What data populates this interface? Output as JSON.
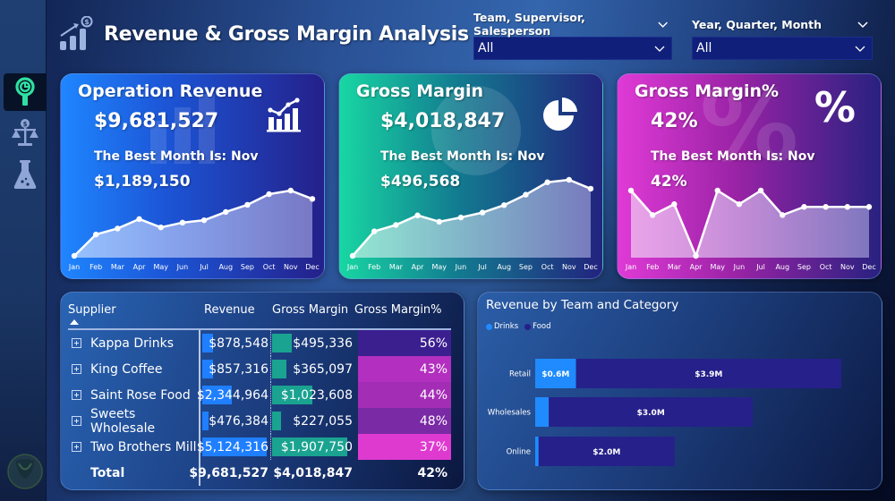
{
  "header": {
    "title": "Revenue & Gross Margin Analysis",
    "icon": "chart-growth-dollar-icon"
  },
  "sidebar": {
    "items": [
      {
        "name": "analytics-magnifier-icon",
        "active": true
      },
      {
        "name": "balance-scale-dollar-icon",
        "active": false
      },
      {
        "name": "lab-flask-icon",
        "active": false
      }
    ]
  },
  "slicers": [
    {
      "label": "Team, Supervisor, Salesperson",
      "value": "All"
    },
    {
      "label": "Year, Quarter, Month",
      "value": "All"
    }
  ],
  "cards": [
    {
      "id": "operation-revenue",
      "title": "Operation Revenue",
      "value": "$9,681,527",
      "best_month_text": "The Best Month Is: Nov",
      "best_month_value": "$1,189,150",
      "icon": "bar-line-chart-icon",
      "gradient": [
        "#1f86ff",
        "#24208a"
      ]
    },
    {
      "id": "gross-margin",
      "title": "Gross Margin",
      "value": "$4,018,847",
      "best_month_text": "The Best Month Is: Nov",
      "best_month_value": "$496,568",
      "icon": "pie-chart-icon",
      "gradient": [
        "#18d7a3",
        "#22237e"
      ]
    },
    {
      "id": "gross-margin-pct",
      "title": "Gross Margin%",
      "value": "42%",
      "best_month_text": "The Best Month Is: Nov",
      "best_month_value": "42%",
      "icon": "percent-icon",
      "gradient": [
        "#e03ad6",
        "#28217f"
      ]
    }
  ],
  "table": {
    "columns": [
      "Supplier",
      "Revenue",
      "Gross Margin",
      "Gross Margin%"
    ],
    "sort": {
      "column": "Supplier",
      "direction": "ascending"
    },
    "rows": [
      {
        "supplier": "Kappa Drinks",
        "revenue": "$878,548",
        "revenue_num": 878548,
        "gross_margin": "$495,336",
        "gm_num": 495336,
        "gm_pct": "56%",
        "gm_pct_color": "#3b1f8f"
      },
      {
        "supplier": "King Coffee",
        "revenue": "$857,316",
        "revenue_num": 857316,
        "gross_margin": "$365,097",
        "gm_num": 365097,
        "gm_pct": "43%",
        "gm_pct_color": "#b22fbf"
      },
      {
        "supplier": "Saint Rose Food",
        "revenue": "$2,344,964",
        "revenue_num": 2344964,
        "gross_margin": "$1,023,608",
        "gm_num": 1023608,
        "gm_pct": "44%",
        "gm_pct_color": "#a42db6"
      },
      {
        "supplier": "Sweets Wholesale",
        "revenue": "$476,384",
        "revenue_num": 476384,
        "gross_margin": "$227,055",
        "gm_num": 227055,
        "gm_pct": "48%",
        "gm_pct_color": "#7a2aa5"
      },
      {
        "supplier": "Two Brothers Mill",
        "revenue": "$5,124,316",
        "revenue_num": 5124316,
        "gross_margin": "$1,907,750",
        "gm_num": 1907750,
        "gm_pct": "37%",
        "gm_pct_color": "#de3ad0"
      }
    ],
    "total": {
      "label": "Total",
      "revenue": "$9,681,527",
      "gross_margin": "$4,018,847",
      "gm_pct": "42%"
    }
  },
  "chart_data": [
    {
      "type": "area",
      "title": "Operation Revenue",
      "x": [
        "Jan",
        "Feb",
        "Mar",
        "Apr",
        "May",
        "Jun",
        "Jul",
        "Aug",
        "Sep",
        "Oct",
        "Nov",
        "Dec"
      ],
      "series": [
        {
          "name": "Revenue",
          "values": [
            258000,
            563000,
            648000,
            783000,
            664000,
            732000,
            766000,
            884000,
            986000,
            1138000,
            1189150,
            1070000
          ]
        }
      ],
      "xlabel": "",
      "ylabel": "",
      "grid": false
    },
    {
      "type": "area",
      "title": "Gross Margin",
      "x": [
        "Jan",
        "Feb",
        "Mar",
        "Apr",
        "May",
        "Jun",
        "Jul",
        "Aug",
        "Sep",
        "Oct",
        "Nov",
        "Dec"
      ],
      "series": [
        {
          "name": "Gross Margin",
          "values": [
            140000,
            255000,
            285000,
            330000,
            300000,
            320000,
            343000,
            378000,
            427000,
            485000,
            496568,
            455000
          ]
        }
      ],
      "xlabel": "",
      "ylabel": "",
      "grid": false
    },
    {
      "type": "area",
      "title": "Gross Margin%",
      "x": [
        "Jan",
        "Feb",
        "Mar",
        "Apr",
        "May",
        "Jun",
        "Jul",
        "Aug",
        "Sep",
        "Oct",
        "Nov",
        "Dec"
      ],
      "series": [
        {
          "name": "Gross Margin%",
          "values": [
            45,
            40.5,
            42.5,
            33,
            45,
            42.5,
            45,
            40.5,
            42,
            42,
            42,
            42
          ]
        }
      ],
      "xlabel": "",
      "ylabel": "",
      "grid": false
    },
    {
      "type": "bar",
      "orientation": "horizontal",
      "stacked": true,
      "title": "Revenue by Team and Category",
      "categories": [
        "Retail",
        "Wholesales",
        "Online"
      ],
      "series": [
        {
          "name": "Drinks",
          "color": "#1f8bff",
          "values": [
            0.6,
            0.2,
            0.05
          ],
          "labels": [
            "$0.6M",
            "",
            ""
          ]
        },
        {
          "name": "Food",
          "color": "#26208a",
          "values": [
            3.9,
            3.0,
            2.0
          ],
          "labels": [
            "$3.9M",
            "$3.0M",
            "$2.0M"
          ]
        }
      ],
      "xlabel": "",
      "ylabel": "",
      "unit": "$M",
      "legend": "top-left",
      "grid": false
    }
  ]
}
